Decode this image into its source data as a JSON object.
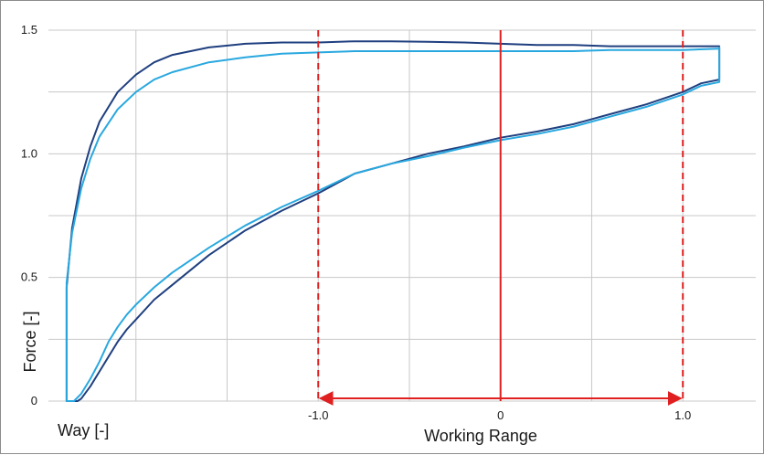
{
  "chart_data": {
    "type": "line",
    "title": "",
    "xlabel": "Way [-]",
    "ylabel": "Force [-]",
    "annotation": "Working Range",
    "grid": true,
    "legend": "none",
    "xlim": [
      -2.48,
      1.4
    ],
    "ylim": [
      0,
      1.5
    ],
    "x_ticks": [
      {
        "value": -1.0,
        "label": "-1.0"
      },
      {
        "value": 1.0,
        "label": "1.0"
      }
    ],
    "y_ticks": [
      {
        "value": 0,
        "label": "0"
      },
      {
        "value": 0.5,
        "label": "0.5"
      },
      {
        "value": 1.0,
        "label": "1.0"
      },
      {
        "value": 1.5,
        "label": "1.5"
      }
    ],
    "x_center_tick": {
      "value": 0,
      "label": "0"
    },
    "working_range": [
      -1.0,
      1.0
    ],
    "center_line": 0,
    "colors": {
      "dark_series": "#1f3f7f",
      "light_series": "#29a8df",
      "range_markers": "#e02020",
      "grid": "#c8c8c8"
    },
    "series": [
      {
        "color_key": "dark_series",
        "x": [
          1.2,
          1.2,
          1.1,
          1.0,
          0.8,
          0.6,
          0.4,
          0.2,
          0.0,
          -0.2,
          -0.4,
          -0.6,
          -0.8,
          -1.0,
          -1.2,
          -1.4,
          -1.6,
          -1.8,
          -1.9,
          -2.0,
          -2.05,
          -2.1,
          -2.15,
          -2.2,
          -2.25,
          -2.3,
          -2.32,
          -2.34,
          -2.36,
          -2.38,
          -2.38,
          -2.35,
          -2.3,
          -2.25,
          -2.2,
          -2.1,
          -2.0,
          -1.9,
          -1.8,
          -1.6,
          -1.4,
          -1.2,
          -1.0,
          -0.8,
          -0.6,
          -0.4,
          -0.2,
          0.0,
          0.2,
          0.4,
          0.6,
          0.8,
          1.0,
          1.2
        ],
        "y": [
          1.43,
          1.3,
          1.285,
          1.25,
          1.2,
          1.16,
          1.12,
          1.09,
          1.065,
          1.03,
          1.0,
          0.96,
          0.92,
          0.84,
          0.77,
          0.69,
          0.59,
          0.47,
          0.41,
          0.33,
          0.29,
          0.24,
          0.18,
          0.12,
          0.06,
          0.01,
          0.0,
          0.0,
          0.0,
          0.0,
          0.46,
          0.7,
          0.9,
          1.03,
          1.13,
          1.25,
          1.32,
          1.37,
          1.4,
          1.43,
          1.445,
          1.45,
          1.45,
          1.455,
          1.455,
          1.453,
          1.45,
          1.445,
          1.44,
          1.44,
          1.435,
          1.435,
          1.435,
          1.435
        ]
      },
      {
        "color_key": "light_series",
        "x": [
          1.2,
          1.2,
          1.1,
          1.0,
          0.8,
          0.6,
          0.4,
          0.2,
          0.0,
          -0.2,
          -0.4,
          -0.6,
          -0.8,
          -1.0,
          -1.2,
          -1.4,
          -1.6,
          -1.8,
          -1.9,
          -2.0,
          -2.05,
          -2.1,
          -2.15,
          -2.2,
          -2.25,
          -2.3,
          -2.34,
          -2.38,
          -2.38,
          -2.35,
          -2.3,
          -2.25,
          -2.2,
          -2.1,
          -2.0,
          -1.9,
          -1.8,
          -1.6,
          -1.4,
          -1.2,
          -1.0,
          -0.8,
          -0.6,
          -0.4,
          -0.2,
          0.0,
          0.2,
          0.4,
          0.6,
          0.8,
          1.0,
          1.2
        ],
        "y": [
          1.43,
          1.29,
          1.275,
          1.24,
          1.19,
          1.15,
          1.11,
          1.08,
          1.055,
          1.025,
          0.99,
          0.96,
          0.92,
          0.85,
          0.785,
          0.71,
          0.62,
          0.52,
          0.46,
          0.39,
          0.35,
          0.3,
          0.24,
          0.16,
          0.09,
          0.03,
          0.0,
          0.0,
          0.48,
          0.68,
          0.86,
          0.98,
          1.07,
          1.18,
          1.25,
          1.3,
          1.33,
          1.37,
          1.39,
          1.405,
          1.41,
          1.415,
          1.415,
          1.415,
          1.415,
          1.415,
          1.415,
          1.415,
          1.42,
          1.42,
          1.42,
          1.425
        ]
      }
    ]
  }
}
